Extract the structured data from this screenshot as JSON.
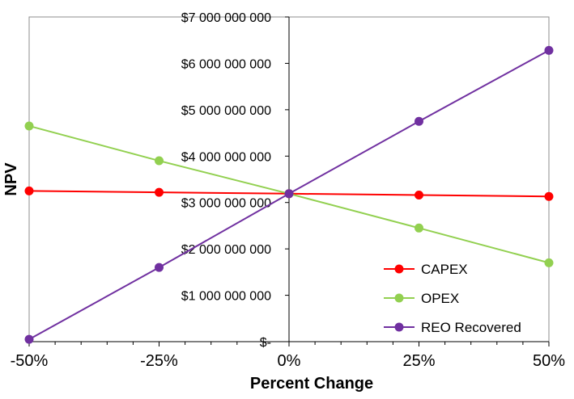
{
  "chart_data": {
    "type": "line",
    "xlabel": "Percent Change",
    "ylabel": "NPV",
    "x": [
      -50,
      -25,
      0,
      25,
      50
    ],
    "x_tick_labels": [
      "-50%",
      "-25%",
      "0%",
      "25%",
      "50%"
    ],
    "xlim": [
      -50,
      50
    ],
    "ylim": [
      0,
      7000000000
    ],
    "y_ticks": [
      0,
      1000000000,
      2000000000,
      3000000000,
      4000000000,
      5000000000,
      6000000000,
      7000000000
    ],
    "y_tick_labels": [
      "$-",
      "$1 000 000 000",
      "$2 000 000 000",
      "$3 000 000 000",
      "$4 000 000 000",
      "$5 000 000 000",
      "$6 000 000 000",
      "$7 000 000 000"
    ],
    "grid": false,
    "legend_position": "bottom-right",
    "series": [
      {
        "name": "CAPEX",
        "color": "#ff0000",
        "values": [
          3250000000,
          3220000000,
          3190000000,
          3160000000,
          3130000000
        ]
      },
      {
        "name": "OPEX",
        "color": "#92d050",
        "values": [
          4650000000,
          3900000000,
          3190000000,
          2450000000,
          1700000000
        ]
      },
      {
        "name": "REO Recovered",
        "color": "#7030a0",
        "values": [
          50000000,
          1600000000,
          3190000000,
          4750000000,
          6280000000
        ]
      }
    ]
  }
}
